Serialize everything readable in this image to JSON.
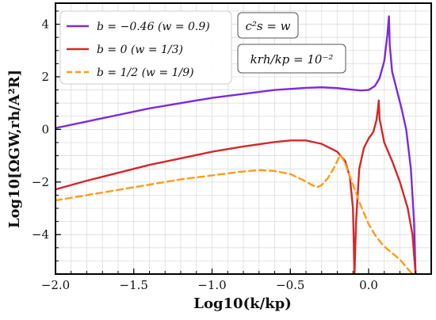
{
  "chart_data": {
    "type": "line",
    "xlabel": "Log10(k/kp)",
    "ylabel": "Log10[ΩGW,rh/A²R]",
    "xlim": [
      -2.0,
      0.4
    ],
    "ylim": [
      -5.5,
      4.8
    ],
    "x_ticks": [
      "−2.0",
      "−1.5",
      "−1.0",
      "−0.5",
      "0.0"
    ],
    "x_tick_values": [
      -2.0,
      -1.5,
      -1.0,
      -0.5,
      0.0
    ],
    "y_ticks": [
      "−4",
      "−2",
      "0",
      "2",
      "4"
    ],
    "y_tick_values": [
      -4,
      -2,
      0,
      2,
      4
    ],
    "grid": true,
    "legend_position": "top-left",
    "annotations": [
      "c²s = w",
      "krh/kp = 10⁻²"
    ],
    "series": [
      {
        "name": "b = −0.46 (w = 0.9)",
        "color": "#7b2be0",
        "style": "solid",
        "points": [
          [
            -2.0,
            0.05
          ],
          [
            -1.8,
            0.3
          ],
          [
            -1.6,
            0.55
          ],
          [
            -1.4,
            0.8
          ],
          [
            -1.2,
            1.0
          ],
          [
            -1.0,
            1.2
          ],
          [
            -0.8,
            1.35
          ],
          [
            -0.6,
            1.5
          ],
          [
            -0.4,
            1.58
          ],
          [
            -0.3,
            1.6
          ],
          [
            -0.2,
            1.57
          ],
          [
            -0.12,
            1.52
          ],
          [
            -0.05,
            1.48
          ],
          [
            0.0,
            1.5
          ],
          [
            0.04,
            1.65
          ],
          [
            0.07,
            1.95
          ],
          [
            0.1,
            2.6
          ],
          [
            0.12,
            3.6
          ],
          [
            0.13,
            4.3
          ],
          [
            0.135,
            3.2
          ],
          [
            0.15,
            2.2
          ],
          [
            0.18,
            1.5
          ],
          [
            0.21,
            0.8
          ],
          [
            0.24,
            0.0
          ],
          [
            0.27,
            -1.5
          ],
          [
            0.29,
            -3.5
          ],
          [
            0.3,
            -5.5
          ]
        ]
      },
      {
        "name": "b = 0 (w = 1/3)",
        "color": "#d62728",
        "style": "solid",
        "points": [
          [
            -2.0,
            -2.28
          ],
          [
            -1.8,
            -1.95
          ],
          [
            -1.6,
            -1.65
          ],
          [
            -1.4,
            -1.35
          ],
          [
            -1.2,
            -1.1
          ],
          [
            -1.0,
            -0.85
          ],
          [
            -0.8,
            -0.65
          ],
          [
            -0.6,
            -0.48
          ],
          [
            -0.5,
            -0.42
          ],
          [
            -0.4,
            -0.42
          ],
          [
            -0.3,
            -0.55
          ],
          [
            -0.2,
            -0.85
          ],
          [
            -0.15,
            -1.2
          ],
          [
            -0.12,
            -1.8
          ],
          [
            -0.1,
            -3.0
          ],
          [
            -0.09,
            -5.5
          ],
          [
            -0.08,
            -3.5
          ],
          [
            -0.06,
            -1.5
          ],
          [
            -0.03,
            -0.7
          ],
          [
            0.0,
            -0.35
          ],
          [
            0.03,
            -0.1
          ],
          [
            0.05,
            0.35
          ],
          [
            0.06,
            0.8
          ],
          [
            0.065,
            1.1
          ],
          [
            0.07,
            0.4
          ],
          [
            0.1,
            -0.5
          ],
          [
            0.15,
            -1.2
          ],
          [
            0.2,
            -2.0
          ],
          [
            0.25,
            -3.0
          ],
          [
            0.28,
            -4.0
          ],
          [
            0.3,
            -5.5
          ]
        ]
      },
      {
        "name": "b = 1/2 (w = 1/9)",
        "color": "#ff9c18",
        "style": "dashed",
        "points": [
          [
            -2.0,
            -2.7
          ],
          [
            -1.8,
            -2.5
          ],
          [
            -1.6,
            -2.3
          ],
          [
            -1.4,
            -2.1
          ],
          [
            -1.2,
            -1.9
          ],
          [
            -1.0,
            -1.75
          ],
          [
            -0.8,
            -1.6
          ],
          [
            -0.7,
            -1.55
          ],
          [
            -0.6,
            -1.58
          ],
          [
            -0.5,
            -1.7
          ],
          [
            -0.42,
            -1.92
          ],
          [
            -0.36,
            -2.12
          ],
          [
            -0.33,
            -2.2
          ],
          [
            -0.3,
            -2.12
          ],
          [
            -0.26,
            -1.85
          ],
          [
            -0.22,
            -1.45
          ],
          [
            -0.18,
            -0.95
          ],
          [
            -0.15,
            -1.3
          ],
          [
            -0.1,
            -2.1
          ],
          [
            -0.05,
            -2.9
          ],
          [
            0.0,
            -3.6
          ],
          [
            0.05,
            -4.1
          ],
          [
            0.1,
            -4.45
          ],
          [
            0.15,
            -4.7
          ],
          [
            0.2,
            -4.95
          ],
          [
            0.25,
            -5.3
          ],
          [
            0.28,
            -5.5
          ]
        ]
      }
    ]
  }
}
